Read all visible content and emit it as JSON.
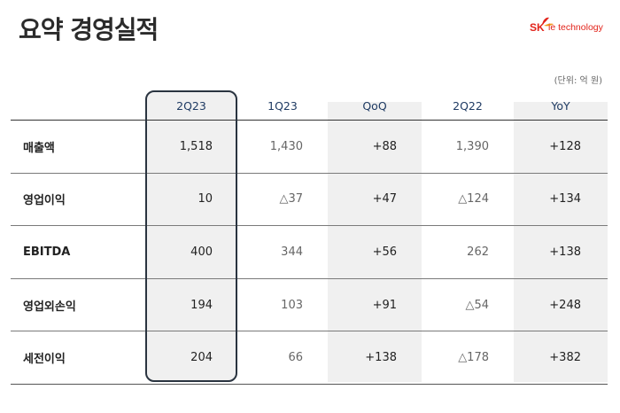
{
  "title": "요약 경영실적",
  "logo": {
    "brand": "SK",
    "name": "ie technology",
    "accent": "#e2231a"
  },
  "unit_note": "(단위: 억 원)",
  "table": {
    "headers": [
      "",
      "2Q23",
      "1Q23",
      "QoQ",
      "2Q22",
      "YoY"
    ],
    "rows": [
      {
        "label": "매출액",
        "values": [
          "1,518",
          "1,430",
          "+88",
          "1,390",
          "+128"
        ]
      },
      {
        "label": "영업이익",
        "values": [
          "10",
          "△37",
          "+47",
          "△124",
          "+134"
        ]
      },
      {
        "label": "EBITDA",
        "values": [
          "400",
          "344",
          "+56",
          "262",
          "+138"
        ]
      },
      {
        "label": "영업외손익",
        "values": [
          "194",
          "103",
          "+91",
          "△54",
          "+248"
        ]
      },
      {
        "label": "세전이익",
        "values": [
          "204",
          "66",
          "+138",
          "△178",
          "+382"
        ]
      }
    ]
  }
}
